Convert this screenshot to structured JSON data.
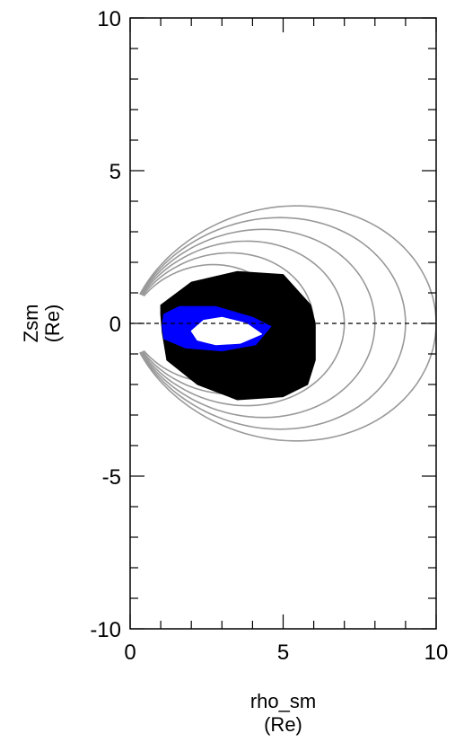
{
  "chart_data": {
    "type": "line",
    "title": "",
    "xlabel_lines": [
      "rho_sm",
      "(Re)"
    ],
    "ylabel_lines": [
      "Zsm",
      "(Re)"
    ],
    "xlim": [
      0,
      10
    ],
    "ylim": [
      -10,
      10
    ],
    "x_ticks": [
      0,
      5,
      10
    ],
    "y_ticks": [
      10,
      5,
      0,
      -5,
      -10
    ],
    "x_tick_labels": [
      "0",
      "5",
      "10"
    ],
    "y_tick_labels": [
      "10",
      "5",
      "0",
      "-5",
      "-10"
    ],
    "x_minor_step": 1,
    "y_minor_step": 1,
    "grid": false,
    "legend": "none",
    "reference_line": {
      "y": 0,
      "style": "dashed",
      "color": "#000000"
    },
    "series": [
      {
        "kind": "dipole_field_lines",
        "color": "#999999",
        "L_values": [
          5.0,
          6.0,
          7.0,
          8.0,
          9.0,
          10.0
        ],
        "footpoint_rho": 0.3,
        "footpoint_z": 0.95
      },
      {
        "kind": "filled_region",
        "color": "#000000",
        "outline": [
          [
            1.0,
            0.6
          ],
          [
            2.0,
            1.35
          ],
          [
            3.5,
            1.7
          ],
          [
            5.0,
            1.6
          ],
          [
            5.9,
            0.6
          ],
          [
            6.05,
            0.0
          ],
          [
            6.05,
            -1.2
          ],
          [
            5.8,
            -2.0
          ],
          [
            5.0,
            -2.4
          ],
          [
            3.5,
            -2.5
          ],
          [
            2.2,
            -2.0
          ],
          [
            1.2,
            -1.2
          ],
          [
            1.05,
            -0.3
          ],
          [
            1.0,
            0.3
          ]
        ]
      },
      {
        "kind": "filled_region",
        "color": "#0000ff",
        "outline": [
          [
            1.1,
            0.3
          ],
          [
            1.6,
            0.55
          ],
          [
            2.8,
            0.55
          ],
          [
            4.0,
            0.2
          ],
          [
            4.6,
            -0.1
          ],
          [
            4.1,
            -0.7
          ],
          [
            3.0,
            -0.9
          ],
          [
            1.8,
            -0.8
          ],
          [
            1.1,
            -0.5
          ],
          [
            1.05,
            -0.1
          ]
        ]
      },
      {
        "kind": "filled_region",
        "color": "#ffffff",
        "outline": [
          [
            2.0,
            -0.25
          ],
          [
            2.4,
            0.1
          ],
          [
            3.0,
            0.2
          ],
          [
            3.8,
            0.0
          ],
          [
            4.3,
            -0.35
          ],
          [
            3.6,
            -0.65
          ],
          [
            2.8,
            -0.7
          ],
          [
            2.2,
            -0.55
          ]
        ]
      }
    ]
  }
}
